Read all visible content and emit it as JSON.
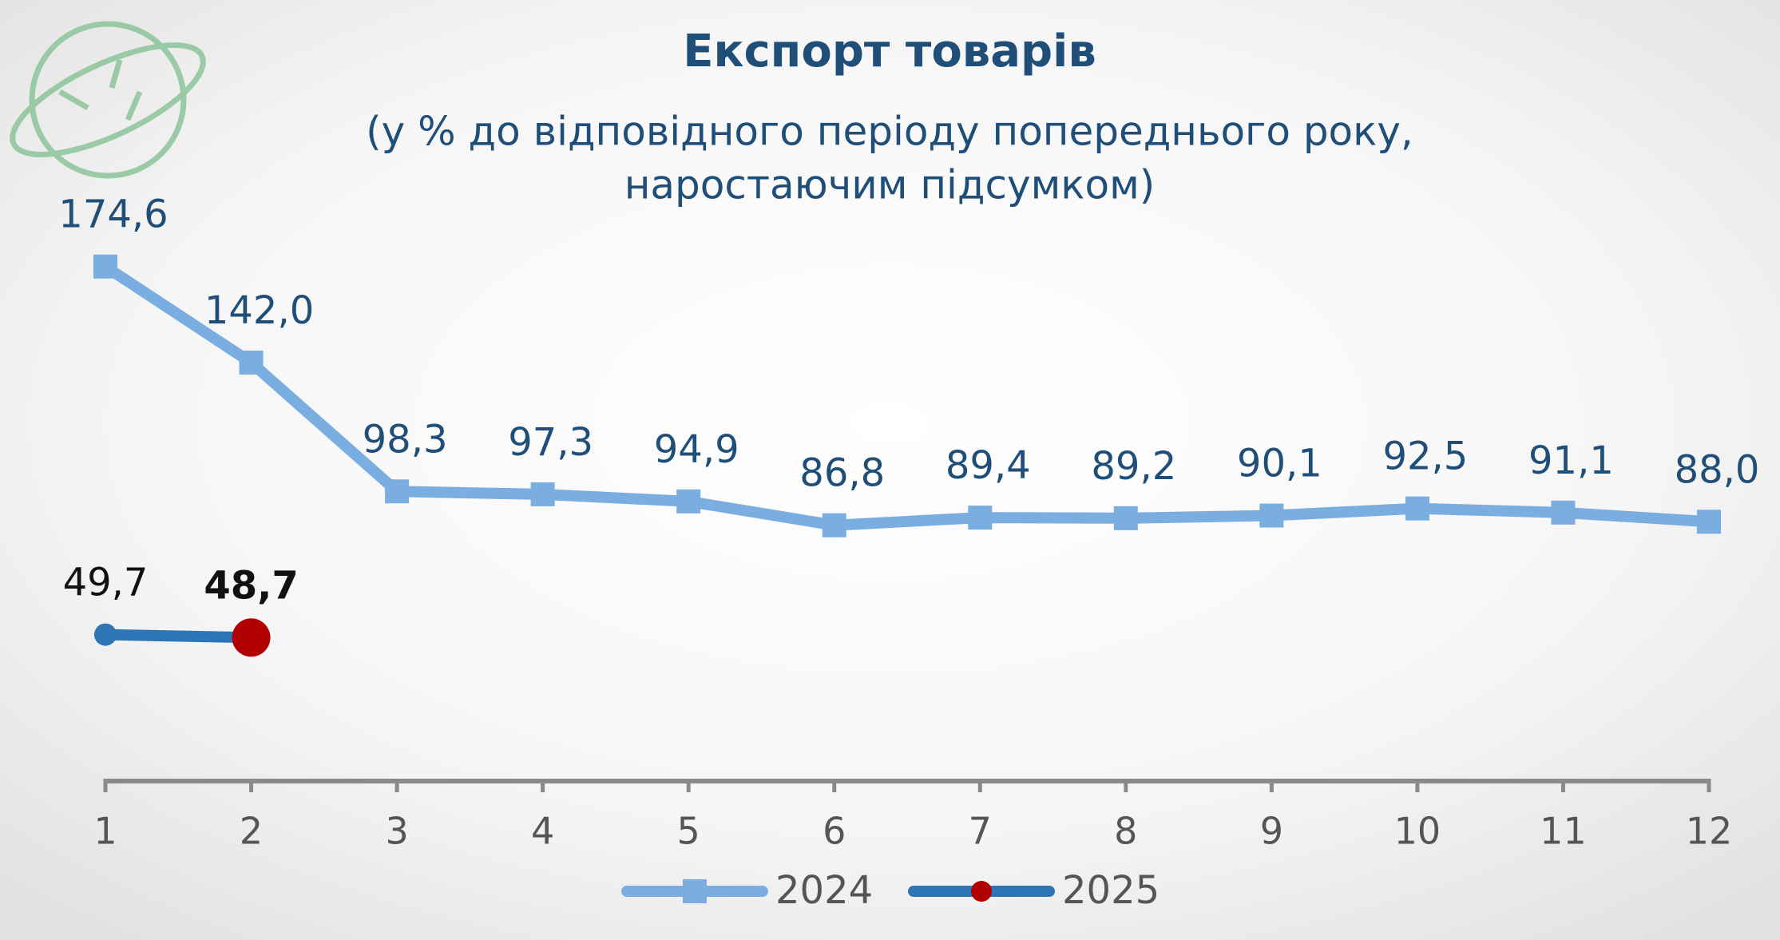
{
  "chart_data": {
    "type": "line",
    "title": "Експорт товарів",
    "subtitle": [
      "(у % до відповідного періоду попереднього року,",
      "наростаючим підсумком)"
    ],
    "categories": [
      "1",
      "2",
      "3",
      "4",
      "5",
      "6",
      "7",
      "8",
      "9",
      "10",
      "11",
      "12"
    ],
    "series": [
      {
        "name": "2024",
        "color": "#7aaee0",
        "values": [
          174.6,
          142.0,
          98.3,
          97.3,
          94.9,
          86.8,
          89.4,
          89.2,
          90.1,
          92.5,
          91.1,
          88.0
        ],
        "value_labels": [
          "174,6",
          "142,0",
          "98,3",
          "97,3",
          "94,9",
          "86,8",
          "89,4",
          "89,2",
          "90,1",
          "92,5",
          "91,1",
          "88,0"
        ]
      },
      {
        "name": "2025",
        "color": "#2e75b6",
        "point_colors": [
          "#2e75b6",
          "#b00000"
        ],
        "values": [
          49.7,
          48.7,
          null,
          null,
          null,
          null,
          null,
          null,
          null,
          null,
          null,
          null
        ],
        "value_labels": [
          "49,7",
          "48,7",
          null,
          null,
          null,
          null,
          null,
          null,
          null,
          null,
          null,
          null
        ]
      }
    ],
    "ylim": [
      0,
      200
    ],
    "legend": "bottom"
  }
}
